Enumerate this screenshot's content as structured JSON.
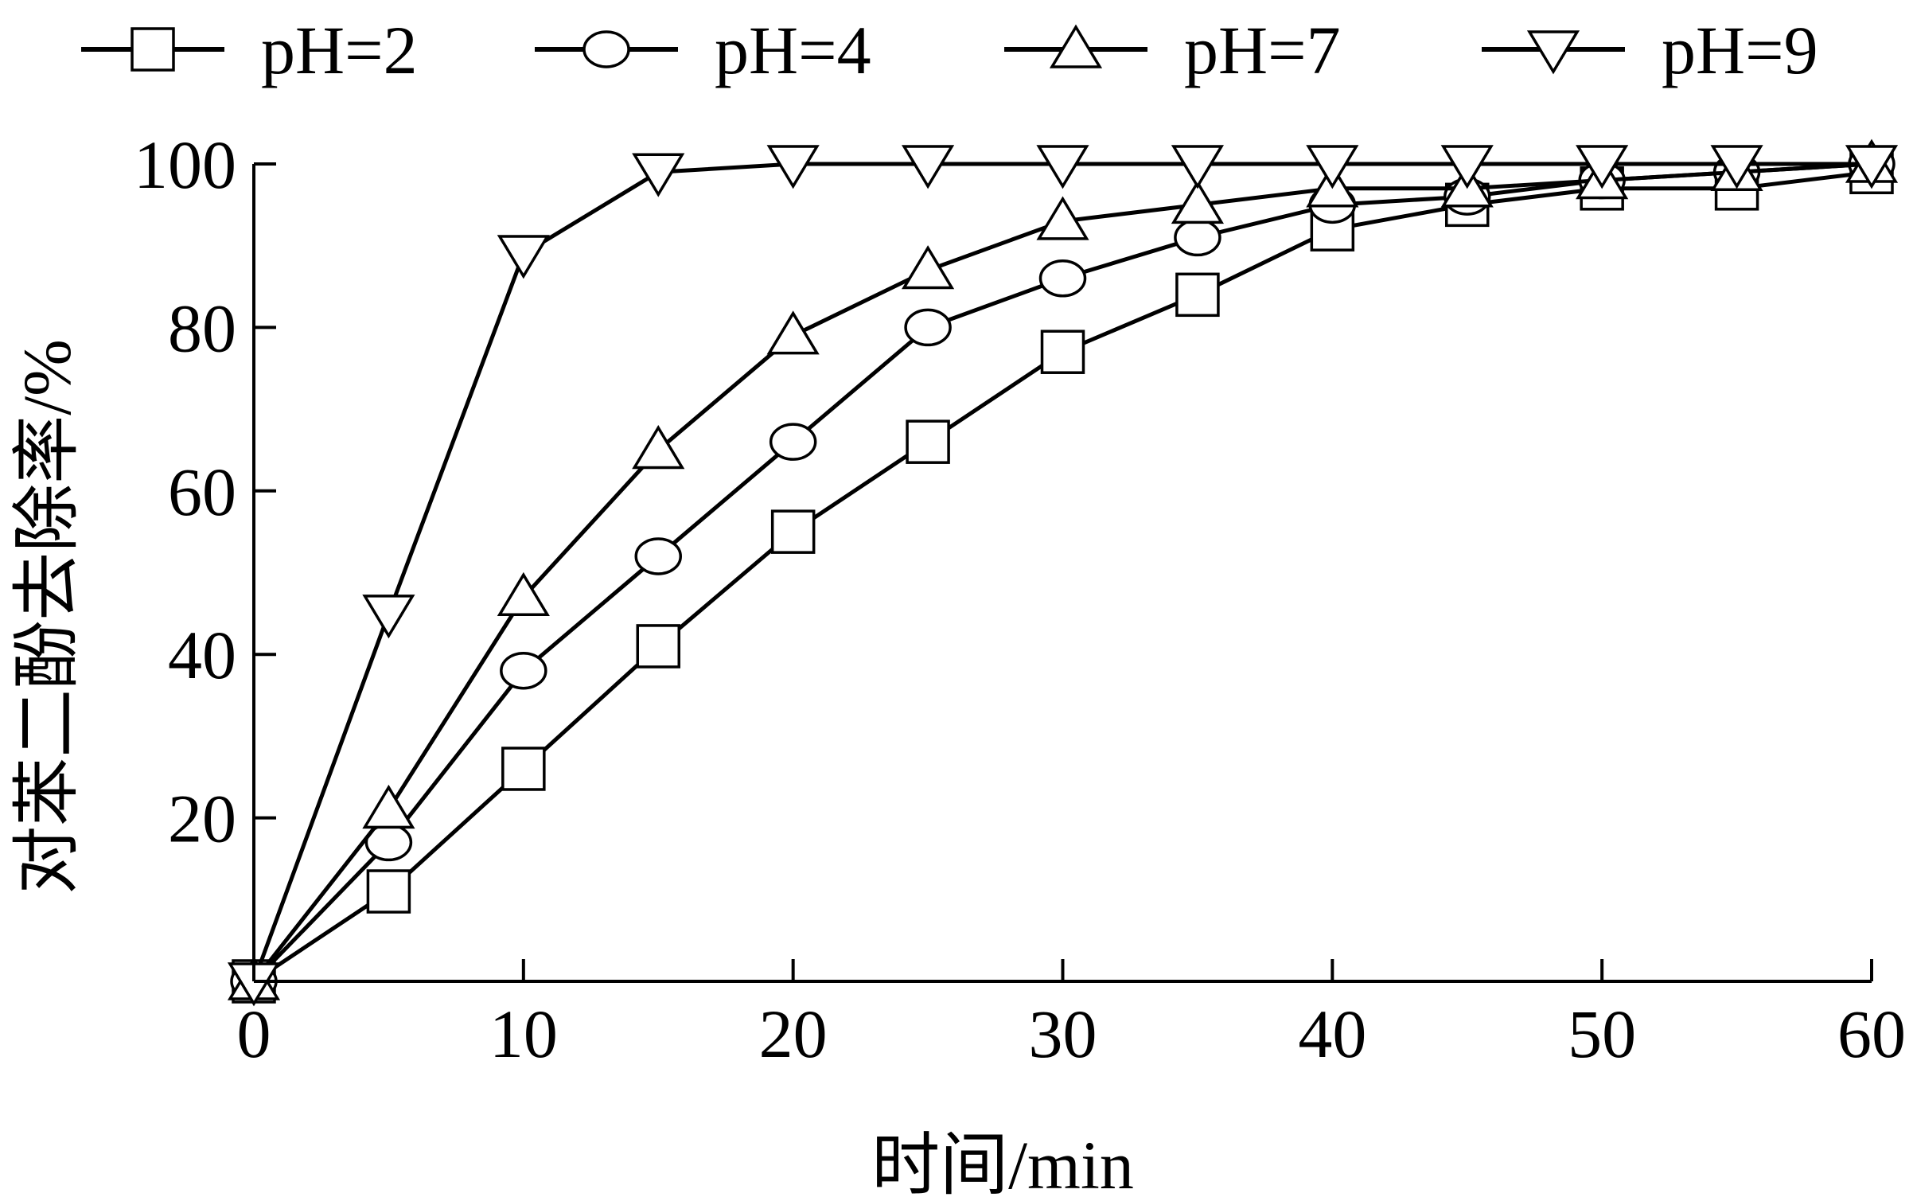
{
  "chart_data": {
    "type": "line",
    "title": "",
    "xlabel": "时间/min",
    "ylabel": "对苯二酚去除率/%",
    "xlim": [
      0,
      60
    ],
    "ylim": [
      0,
      100
    ],
    "x_ticks": [
      "0",
      "10",
      "20",
      "30",
      "40",
      "50",
      "60"
    ],
    "y_ticks": [
      "20",
      "40",
      "60",
      "80",
      "100"
    ],
    "legend_position": "top",
    "grid": false,
    "series": [
      {
        "name": "pH=2",
        "marker": "square",
        "x": [
          0,
          5,
          10,
          15,
          20,
          25,
          30,
          35,
          40,
          45,
          50,
          55,
          60
        ],
        "y": [
          0,
          11,
          26,
          41,
          55,
          66,
          77,
          84,
          92,
          95,
          97,
          97,
          99
        ]
      },
      {
        "name": "pH=4",
        "marker": "circle",
        "x": [
          0,
          5,
          10,
          15,
          20,
          25,
          30,
          35,
          40,
          45,
          50,
          55,
          60
        ],
        "y": [
          0,
          17,
          38,
          52,
          66,
          80,
          86,
          91,
          95,
          96,
          98,
          99,
          100
        ]
      },
      {
        "name": "pH=7",
        "marker": "triangle-up",
        "x": [
          0,
          5,
          10,
          15,
          20,
          25,
          30,
          35,
          40,
          45,
          50,
          55,
          60
        ],
        "y": [
          0,
          21,
          47,
          65,
          79,
          87,
          93,
          95,
          97,
          97,
          98,
          99,
          100
        ]
      },
      {
        "name": "pH=9",
        "marker": "triangle-down",
        "x": [
          0,
          5,
          10,
          15,
          20,
          25,
          30,
          35,
          40,
          45,
          50,
          55,
          60
        ],
        "y": [
          0,
          45,
          89,
          99,
          100,
          100,
          100,
          100,
          100,
          100,
          100,
          100,
          100
        ]
      }
    ]
  }
}
